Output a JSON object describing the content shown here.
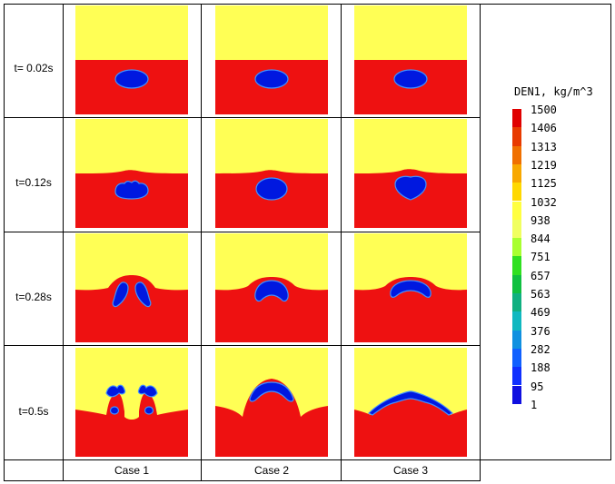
{
  "colors": {
    "top": "#ffff55",
    "bottom": "#ee1111",
    "bubble": "#0018e0",
    "edge": "#4090ff"
  },
  "rows": [
    {
      "label": "t= 0.02s"
    },
    {
      "label": "t=0.12s"
    },
    {
      "label": "t=0.28s"
    },
    {
      "label": "t=0.5s"
    }
  ],
  "cases": [
    {
      "label": "Case 1"
    },
    {
      "label": "Case 2"
    },
    {
      "label": "Case 3"
    }
  ],
  "colorbar": {
    "title": "DEN1, kg/m^3",
    "ticks": [
      "1500",
      "1406",
      "1313",
      "1219",
      "1125",
      "1032",
      "938",
      "844",
      "751",
      "657",
      "563",
      "469",
      "376",
      "282",
      "188",
      "95",
      "1"
    ],
    "colors": [
      "#e00000",
      "#e83a00",
      "#f07000",
      "#f8a800",
      "#ffd800",
      "#ffff40",
      "#f0ff60",
      "#a8ff30",
      "#30e020",
      "#10c040",
      "#10b080",
      "#10b8c0",
      "#1090e0",
      "#1060ff",
      "#1030ff",
      "#1010e0"
    ]
  }
}
